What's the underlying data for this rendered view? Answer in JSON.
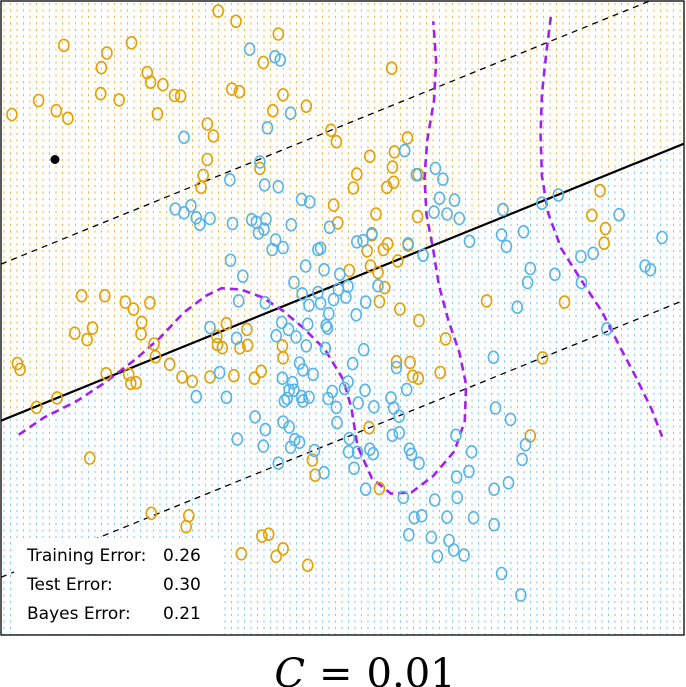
{
  "chart_data": {
    "type": "scatter",
    "xlim": [
      0,
      1
    ],
    "ylim": [
      0,
      1
    ],
    "grid": false,
    "legend": "none",
    "classes": [
      {
        "name": "",
        "color": "#E69F00"
      },
      {
        "name": "",
        "color": "#56B4E9"
      }
    ],
    "svm_boundary": {
      "intercept": 0.338,
      "slope": 0.437
    },
    "margin_offset": 0.247,
    "bayes_boundary_left": [
      [
        0.026,
        0.316
      ],
      [
        0.063,
        0.343
      ],
      [
        0.111,
        0.369
      ],
      [
        0.152,
        0.398
      ],
      [
        0.197,
        0.435
      ],
      [
        0.233,
        0.469
      ],
      [
        0.267,
        0.508
      ],
      [
        0.3,
        0.535
      ],
      [
        0.323,
        0.547
      ],
      [
        0.351,
        0.545
      ],
      [
        0.382,
        0.533
      ],
      [
        0.412,
        0.512
      ],
      [
        0.442,
        0.485
      ],
      [
        0.474,
        0.451
      ],
      [
        0.501,
        0.403
      ],
      [
        0.513,
        0.358
      ],
      [
        0.522,
        0.298
      ],
      [
        0.543,
        0.247
      ],
      [
        0.571,
        0.223
      ],
      [
        0.601,
        0.225
      ],
      [
        0.633,
        0.251
      ],
      [
        0.664,
        0.29
      ],
      [
        0.679,
        0.338
      ],
      [
        0.681,
        0.395
      ],
      [
        0.671,
        0.446
      ],
      [
        0.655,
        0.496
      ],
      [
        0.641,
        0.552
      ],
      [
        0.633,
        0.607
      ],
      [
        0.623,
        0.663
      ],
      [
        0.62,
        0.721
      ],
      [
        0.624,
        0.78
      ],
      [
        0.634,
        0.843
      ],
      [
        0.637,
        0.905
      ],
      [
        0.633,
        0.968
      ]
    ],
    "bayes_boundary_right": [
      [
        0.805,
        0.975
      ],
      [
        0.798,
        0.914
      ],
      [
        0.792,
        0.853
      ],
      [
        0.79,
        0.789
      ],
      [
        0.792,
        0.724
      ],
      [
        0.801,
        0.666
      ],
      [
        0.82,
        0.61
      ],
      [
        0.85,
        0.559
      ],
      [
        0.88,
        0.51
      ],
      [
        0.905,
        0.457
      ],
      [
        0.93,
        0.406
      ],
      [
        0.953,
        0.355
      ],
      [
        0.968,
        0.313
      ]
    ],
    "marked_point": {
      "x": 0.079,
      "y": 0.75
    },
    "points_class1": [
      [
        0.318,
        0.984
      ],
      [
        0.344,
        0.968
      ],
      [
        0.092,
        0.93
      ],
      [
        0.191,
        0.934
      ],
      [
        0.406,
        0.948
      ],
      [
        0.155,
        0.918
      ],
      [
        0.147,
        0.895
      ],
      [
        0.384,
        0.903
      ],
      [
        0.572,
        0.894
      ],
      [
        0.214,
        0.887
      ],
      [
        0.219,
        0.872
      ],
      [
        0.338,
        0.861
      ],
      [
        0.237,
        0.868
      ],
      [
        0.349,
        0.857
      ],
      [
        0.016,
        0.821
      ],
      [
        0.055,
        0.843
      ],
      [
        0.081,
        0.827
      ],
      [
        0.098,
        0.815
      ],
      [
        0.146,
        0.854
      ],
      [
        0.173,
        0.844
      ],
      [
        0.229,
        0.822
      ],
      [
        0.254,
        0.851
      ],
      [
        0.263,
        0.85
      ],
      [
        0.302,
        0.806
      ],
      [
        0.398,
        0.827
      ],
      [
        0.413,
        0.852
      ],
      [
        0.447,
        0.834
      ],
      [
        0.483,
        0.796
      ],
      [
        0.302,
        0.75
      ],
      [
        0.296,
        0.725
      ],
      [
        0.293,
        0.706
      ],
      [
        0.311,
        0.787
      ],
      [
        0.379,
        0.736
      ],
      [
        0.491,
        0.778
      ],
      [
        0.521,
        0.727
      ],
      [
        0.54,
        0.755
      ],
      [
        0.573,
        0.738
      ],
      [
        0.595,
        0.784
      ],
      [
        0.576,
        0.762
      ],
      [
        0.611,
        0.726
      ],
      [
        0.575,
        0.714
      ],
      [
        0.565,
        0.706
      ],
      [
        0.516,
        0.705
      ],
      [
        0.549,
        0.664
      ],
      [
        0.543,
        0.631
      ],
      [
        0.566,
        0.617
      ],
      [
        0.596,
        0.615
      ],
      [
        0.61,
        0.66
      ],
      [
        0.56,
        0.608
      ],
      [
        0.487,
        0.678
      ],
      [
        0.493,
        0.65
      ],
      [
        0.536,
        0.606
      ],
      [
        0.51,
        0.575
      ],
      [
        0.541,
        0.582
      ],
      [
        0.552,
        0.572
      ],
      [
        0.581,
        0.59
      ],
      [
        0.562,
        0.548
      ],
      [
        0.554,
        0.526
      ],
      [
        0.584,
        0.514
      ],
      [
        0.612,
        0.496
      ],
      [
        0.579,
        0.431
      ],
      [
        0.599,
        0.43
      ],
      [
        0.603,
        0.408
      ],
      [
        0.611,
        0.405
      ],
      [
        0.643,
        0.414
      ],
      [
        0.651,
        0.467
      ],
      [
        0.711,
        0.527
      ],
      [
        0.793,
        0.437
      ],
      [
        0.865,
        0.662
      ],
      [
        0.877,
        0.701
      ],
      [
        0.885,
        0.641
      ],
      [
        0.883,
        0.618
      ],
      [
        0.825,
        0.525
      ],
      [
        0.775,
        0.314
      ],
      [
        0.539,
        0.327
      ],
      [
        0.554,
        0.231
      ],
      [
        0.46,
        0.252
      ],
      [
        0.456,
        0.276
      ],
      [
        0.412,
        0.456
      ],
      [
        0.36,
        0.482
      ],
      [
        0.33,
        0.491
      ],
      [
        0.316,
        0.471
      ],
      [
        0.317,
        0.458
      ],
      [
        0.324,
        0.453
      ],
      [
        0.35,
        0.453
      ],
      [
        0.361,
        0.457
      ],
      [
        0.413,
        0.437
      ],
      [
        0.381,
        0.416
      ],
      [
        0.371,
        0.405
      ],
      [
        0.341,
        0.409
      ],
      [
        0.306,
        0.407
      ],
      [
        0.28,
        0.4
      ],
      [
        0.265,
        0.407
      ],
      [
        0.247,
        0.427
      ],
      [
        0.226,
        0.439
      ],
      [
        0.224,
        0.459
      ],
      [
        0.205,
        0.475
      ],
      [
        0.194,
        0.514
      ],
      [
        0.218,
        0.524
      ],
      [
        0.206,
        0.493
      ],
      [
        0.182,
        0.525
      ],
      [
        0.152,
        0.535
      ],
      [
        0.118,
        0.535
      ],
      [
        0.134,
        0.484
      ],
      [
        0.108,
        0.476
      ],
      [
        0.028,
        0.419
      ],
      [
        0.024,
        0.428
      ],
      [
        0.052,
        0.359
      ],
      [
        0.082,
        0.374
      ],
      [
        0.126,
        0.466
      ],
      [
        0.154,
        0.412
      ],
      [
        0.187,
        0.411
      ],
      [
        0.19,
        0.397
      ],
      [
        0.198,
        0.398
      ],
      [
        0.13,
        0.279
      ],
      [
        0.22,
        0.192
      ],
      [
        0.275,
        0.188
      ],
      [
        0.271,
        0.171
      ],
      [
        0.308,
        0.138
      ],
      [
        0.352,
        0.128
      ],
      [
        0.403,
        0.124
      ],
      [
        0.413,
        0.136
      ],
      [
        0.392,
        0.159
      ],
      [
        0.382,
        0.156
      ],
      [
        0.449,
        0.11
      ]
    ],
    "points_class2": [
      [
        0.364,
        0.924
      ],
      [
        0.401,
        0.912
      ],
      [
        0.409,
        0.907
      ],
      [
        0.424,
        0.823
      ],
      [
        0.39,
        0.8
      ],
      [
        0.268,
        0.785
      ],
      [
        0.591,
        0.764
      ],
      [
        0.608,
        0.726
      ],
      [
        0.379,
        0.746
      ],
      [
        0.335,
        0.718
      ],
      [
        0.406,
        0.707
      ],
      [
        0.452,
        0.683
      ],
      [
        0.255,
        0.672
      ],
      [
        0.278,
        0.677
      ],
      [
        0.306,
        0.657
      ],
      [
        0.339,
        0.649
      ],
      [
        0.367,
        0.655
      ],
      [
        0.374,
        0.651
      ],
      [
        0.397,
        0.608
      ],
      [
        0.464,
        0.608
      ],
      [
        0.481,
        0.643
      ],
      [
        0.468,
        0.61
      ],
      [
        0.446,
        0.582
      ],
      [
        0.473,
        0.576
      ],
      [
        0.552,
        0.551
      ],
      [
        0.494,
        0.545
      ],
      [
        0.464,
        0.54
      ],
      [
        0.508,
        0.55
      ],
      [
        0.52,
        0.505
      ],
      [
        0.468,
        0.523
      ],
      [
        0.48,
        0.507
      ],
      [
        0.429,
        0.556
      ],
      [
        0.475,
        0.452
      ],
      [
        0.449,
        0.49
      ],
      [
        0.447,
        0.456
      ],
      [
        0.442,
        0.418
      ],
      [
        0.429,
        0.386
      ],
      [
        0.44,
        0.376
      ],
      [
        0.413,
        0.336
      ],
      [
        0.422,
        0.328
      ],
      [
        0.43,
        0.308
      ],
      [
        0.459,
        0.291
      ],
      [
        0.473,
        0.256
      ],
      [
        0.492,
        0.335
      ],
      [
        0.509,
        0.289
      ],
      [
        0.522,
        0.288
      ],
      [
        0.54,
        0.293
      ],
      [
        0.51,
        0.31
      ],
      [
        0.508,
        0.399
      ],
      [
        0.503,
        0.389
      ],
      [
        0.515,
        0.428
      ],
      [
        0.579,
        0.422
      ],
      [
        0.594,
        0.387
      ],
      [
        0.571,
        0.374
      ],
      [
        0.546,
        0.36
      ],
      [
        0.583,
        0.319
      ],
      [
        0.601,
        0.285
      ],
      [
        0.612,
        0.271
      ],
      [
        0.589,
        0.217
      ],
      [
        0.605,
        0.185
      ],
      [
        0.597,
        0.158
      ],
      [
        0.63,
        0.154
      ],
      [
        0.639,
        0.124
      ],
      [
        0.616,
        0.188
      ],
      [
        0.635,
        0.213
      ],
      [
        0.663,
        0.134
      ],
      [
        0.668,
        0.217
      ],
      [
        0.692,
        0.185
      ],
      [
        0.722,
        0.23
      ],
      [
        0.689,
        0.289
      ],
      [
        0.666,
        0.315
      ],
      [
        0.724,
        0.358
      ],
      [
        0.746,
        0.34
      ],
      [
        0.768,
        0.3
      ],
      [
        0.743,
        0.24
      ],
      [
        0.763,
        0.277
      ],
      [
        0.722,
        0.174
      ],
      [
        0.678,
        0.126
      ],
      [
        0.721,
        0.438
      ],
      [
        0.756,
        0.517
      ],
      [
        0.771,
        0.556
      ],
      [
        0.775,
        0.578
      ],
      [
        0.74,
        0.613
      ],
      [
        0.733,
        0.631
      ],
      [
        0.735,
        0.671
      ],
      [
        0.816,
        0.694
      ],
      [
        0.792,
        0.681
      ],
      [
        0.887,
        0.483
      ],
      [
        0.811,
        0.569
      ],
      [
        0.849,
        0.597
      ],
      [
        0.85,
        0.556
      ],
      [
        0.867,
        0.602
      ],
      [
        0.968,
        0.627
      ],
      [
        0.905,
        0.663
      ],
      [
        0.943,
        0.582
      ],
      [
        0.951,
        0.576
      ],
      [
        0.765,
        0.636
      ],
      [
        0.686,
        0.621
      ],
      [
        0.636,
        0.736
      ],
      [
        0.647,
        0.719
      ],
      [
        0.642,
        0.689
      ],
      [
        0.634,
        0.667
      ],
      [
        0.653,
        0.664
      ],
      [
        0.671,
        0.657
      ],
      [
        0.664,
        0.686
      ],
      [
        0.618,
        0.599
      ],
      [
        0.596,
        0.617
      ],
      [
        0.521,
        0.62
      ],
      [
        0.53,
        0.622
      ],
      [
        0.543,
        0.633
      ],
      [
        0.487,
        0.529
      ],
      [
        0.505,
        0.533
      ],
      [
        0.496,
        0.569
      ],
      [
        0.476,
        0.488
      ],
      [
        0.387,
        0.524
      ],
      [
        0.345,
        0.468
      ],
      [
        0.403,
        0.472
      ],
      [
        0.432,
        0.47
      ],
      [
        0.437,
        0.429
      ],
      [
        0.412,
        0.405
      ],
      [
        0.427,
        0.398
      ],
      [
        0.451,
        0.52
      ],
      [
        0.441,
        0.538
      ],
      [
        0.402,
        0.623
      ],
      [
        0.336,
        0.591
      ],
      [
        0.348,
        0.527
      ],
      [
        0.286,
        0.658
      ],
      [
        0.291,
        0.648
      ],
      [
        0.268,
        0.666
      ],
      [
        0.385,
        0.64
      ],
      [
        0.377,
        0.634
      ],
      [
        0.413,
        0.611
      ],
      [
        0.425,
        0.647
      ],
      [
        0.44,
        0.687
      ],
      [
        0.386,
        0.71
      ],
      [
        0.388,
        0.656
      ],
      [
        0.354,
        0.566
      ],
      [
        0.306,
        0.485
      ],
      [
        0.32,
        0.414
      ],
      [
        0.286,
        0.376
      ],
      [
        0.33,
        0.375
      ],
      [
        0.372,
        0.344
      ],
      [
        0.419,
        0.373
      ],
      [
        0.422,
        0.386
      ],
      [
        0.451,
        0.375
      ],
      [
        0.479,
        0.373
      ],
      [
        0.442,
        0.369
      ],
      [
        0.415,
        0.369
      ],
      [
        0.387,
        0.324
      ],
      [
        0.346,
        0.309
      ],
      [
        0.384,
        0.298
      ],
      [
        0.424,
        0.296
      ],
      [
        0.437,
        0.304
      ],
      [
        0.406,
        0.271
      ],
      [
        0.485,
        0.384
      ],
      [
        0.491,
        0.359
      ],
      [
        0.517,
        0.263
      ],
      [
        0.534,
        0.23
      ],
      [
        0.545,
        0.286
      ],
      [
        0.523,
        0.366
      ],
      [
        0.531,
        0.45
      ],
      [
        0.534,
        0.525
      ],
      [
        0.478,
        0.484
      ],
      [
        0.421,
        0.482
      ],
      [
        0.411,
        0.493
      ],
      [
        0.457,
        0.411
      ],
      [
        0.533,
        0.386
      ],
      [
        0.583,
        0.345
      ],
      [
        0.575,
        0.358
      ],
      [
        0.573,
        0.315
      ],
      [
        0.598,
        0.293
      ],
      [
        0.653,
        0.186
      ],
      [
        0.667,
        0.249
      ],
      [
        0.656,
        0.149
      ],
      [
        0.733,
        0.097
      ],
      [
        0.761,
        0.063
      ],
      [
        0.685,
        0.258
      ]
    ]
  },
  "legend_box": {
    "training_label": "Training Error:",
    "training_value": "0.26",
    "test_label": "Test Error:",
    "test_value": "0.30",
    "bayes_label": "Bayes Error:",
    "bayes_value": "0.21"
  },
  "caption": {
    "symbol": "C",
    "equals": "=",
    "value": "0.01"
  },
  "colors": {
    "class1": "#E69F00",
    "class2": "#56B4E9",
    "svm_line": "#000000",
    "bayes_line": "#A020F0"
  }
}
